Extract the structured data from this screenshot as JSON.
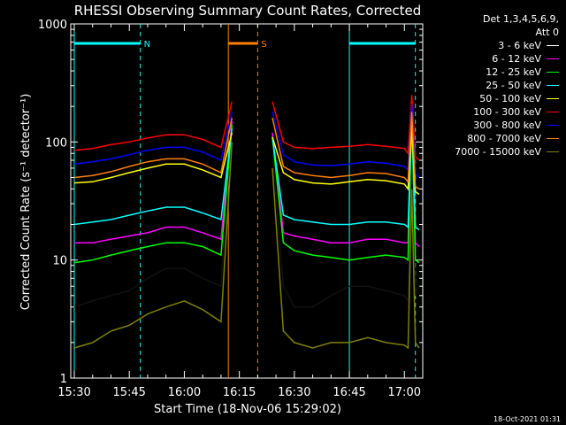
{
  "chart_data": {
    "type": "line",
    "title": "RHESSI Observing Summary Count Rates, Corrected",
    "xlabel": "Start Time (18-Nov-06 15:29:02)",
    "ylabel": "Corrected Count Rate (s⁻¹ detector⁻¹)",
    "y_scale": "log",
    "ylim": [
      1,
      1000
    ],
    "xlim": [
      "15:29:02",
      "17:05"
    ],
    "x_ticks": [
      "15:30",
      "15:45",
      "16:00",
      "16:15",
      "16:30",
      "16:45",
      "17:00"
    ],
    "y_ticks": [
      "1",
      "10",
      "100",
      "1000"
    ],
    "grid": false,
    "legend_position": "top-right",
    "detector_info": [
      "Det 1,3,4,5,6,9,",
      "Att 0"
    ],
    "annotations": [
      {
        "label": "N",
        "type": "night",
        "start": "15:30",
        "end": "15:48",
        "color": "#00ffff"
      },
      {
        "label": "S",
        "type": "SAA",
        "start": "16:12",
        "end": "16:20",
        "color": "#ff8000"
      },
      {
        "label": "",
        "type": "night",
        "start": "16:45",
        "end": "17:03",
        "color": "#00ffff"
      }
    ],
    "gaps": [
      {
        "start": "16:13",
        "end": "16:24"
      }
    ],
    "x": [
      "15:30",
      "15:35",
      "15:40",
      "15:45",
      "15:50",
      "15:55",
      "16:00",
      "16:05",
      "16:10",
      "16:13",
      "16:24",
      "16:27",
      "16:30",
      "16:35",
      "16:40",
      "16:45",
      "16:50",
      "16:55",
      "17:00",
      "17:01",
      "17:02",
      "17:03",
      "17:04"
    ],
    "series": [
      {
        "name": "3 - 6 keV",
        "color": "#ffffff",
        "plot_color": "#000000",
        "values": [
          4,
          4.5,
          5,
          5.5,
          7,
          8.5,
          8.5,
          7,
          6,
          150,
          80,
          6,
          4,
          4,
          5,
          6,
          6,
          5.5,
          5,
          4.5,
          120,
          5,
          6
        ]
      },
      {
        "name": "6 - 12 keV",
        "color": "#ff00ff",
        "values": [
          14,
          14,
          15,
          16,
          17,
          19,
          19,
          17,
          15,
          150,
          120,
          17,
          16,
          15,
          14,
          14,
          15,
          15,
          14,
          14,
          200,
          14,
          13
        ]
      },
      {
        "name": "12 - 25 keV",
        "color": "#00ff00",
        "values": [
          9.5,
          10,
          11,
          12,
          13,
          14,
          14,
          13,
          11,
          140,
          110,
          14,
          12,
          11,
          10.5,
          10,
          10.5,
          11,
          10.5,
          10,
          180,
          10,
          9.5
        ]
      },
      {
        "name": "25 - 50 keV",
        "color": "#00ffff",
        "values": [
          20,
          21,
          22,
          24,
          26,
          28,
          28,
          25,
          22,
          130,
          110,
          24,
          22,
          21,
          20,
          20,
          21,
          21,
          20,
          19,
          160,
          19,
          18
        ]
      },
      {
        "name": "50 - 100 keV",
        "color": "#ffff00",
        "values": [
          45,
          46,
          50,
          55,
          60,
          65,
          65,
          58,
          50,
          120,
          110,
          55,
          48,
          45,
          44,
          46,
          48,
          47,
          44,
          40,
          130,
          38,
          36
        ]
      },
      {
        "name": "100 - 300 keV",
        "color": "#ff0000",
        "values": [
          85,
          88,
          95,
          100,
          108,
          115,
          115,
          105,
          90,
          220,
          220,
          100,
          90,
          88,
          90,
          92,
          95,
          92,
          88,
          80,
          250,
          75,
          70
        ]
      },
      {
        "name": "300 - 800 keV",
        "color": "#0000ff",
        "values": [
          65,
          68,
          72,
          78,
          85,
          90,
          90,
          82,
          70,
          180,
          180,
          78,
          68,
          64,
          63,
          65,
          68,
          66,
          62,
          58,
          210,
          54,
          50
        ]
      },
      {
        "name": "800 - 7000 keV",
        "color": "#ff8000",
        "values": [
          50,
          52,
          56,
          62,
          68,
          72,
          72,
          65,
          55,
          160,
          160,
          62,
          55,
          52,
          50,
          52,
          55,
          54,
          50,
          46,
          180,
          42,
          40
        ]
      },
      {
        "name": "7000 - 15000 keV",
        "color": "#808000",
        "values": [
          1.8,
          2,
          2.5,
          2.8,
          3.5,
          4,
          4.5,
          3.8,
          3,
          100,
          60,
          2.5,
          2,
          1.8,
          2,
          2,
          2.2,
          2,
          1.9,
          1.8,
          40,
          2,
          1.8
        ]
      }
    ]
  },
  "footer_timestamp": "18-Oct-2021 01:31"
}
